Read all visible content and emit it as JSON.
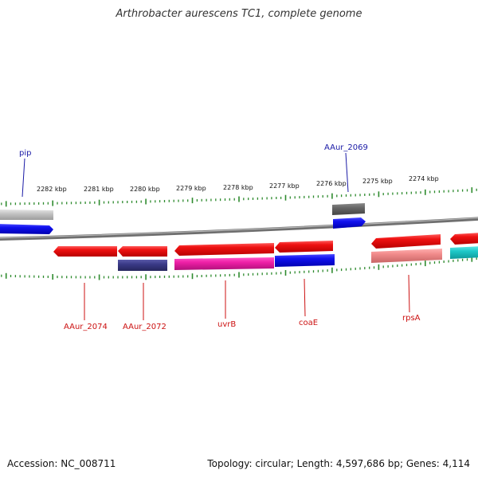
{
  "title": "Arthrobacter aurescens TC1, complete genome",
  "footer": {
    "accession": "Accession: NC_008711",
    "summary": "Topology: circular; Length: 4,597,686 bp; Genes: 4,114"
  },
  "colors": {
    "backbone": "#8a8a8a",
    "tick": "#2e8b2e",
    "label_blue": "#1a1aa6",
    "label_red": "#cc1111"
  },
  "ruler": {
    "unit": "kbp",
    "labels": [
      "2282 kbp",
      "2281 kbp",
      "2280 kbp",
      "2279 kbp",
      "2278 kbp",
      "2277 kbp",
      "2276 kbp",
      "2275 kbp",
      "2274 kbp"
    ]
  },
  "genes": [
    {
      "label": "pip",
      "label_color": "blue",
      "side": "top"
    },
    {
      "label": "AAur_2069",
      "label_color": "blue",
      "side": "top"
    },
    {
      "label": "AAur_2074",
      "label_color": "red",
      "side": "bottom"
    },
    {
      "label": "AAur_2072",
      "label_color": "red",
      "side": "bottom"
    },
    {
      "label": "uvrB",
      "label_color": "red",
      "side": "bottom"
    },
    {
      "label": "coaE",
      "label_color": "red",
      "side": "bottom"
    },
    {
      "label": "rpsA",
      "label_color": "red",
      "side": "bottom"
    }
  ]
}
